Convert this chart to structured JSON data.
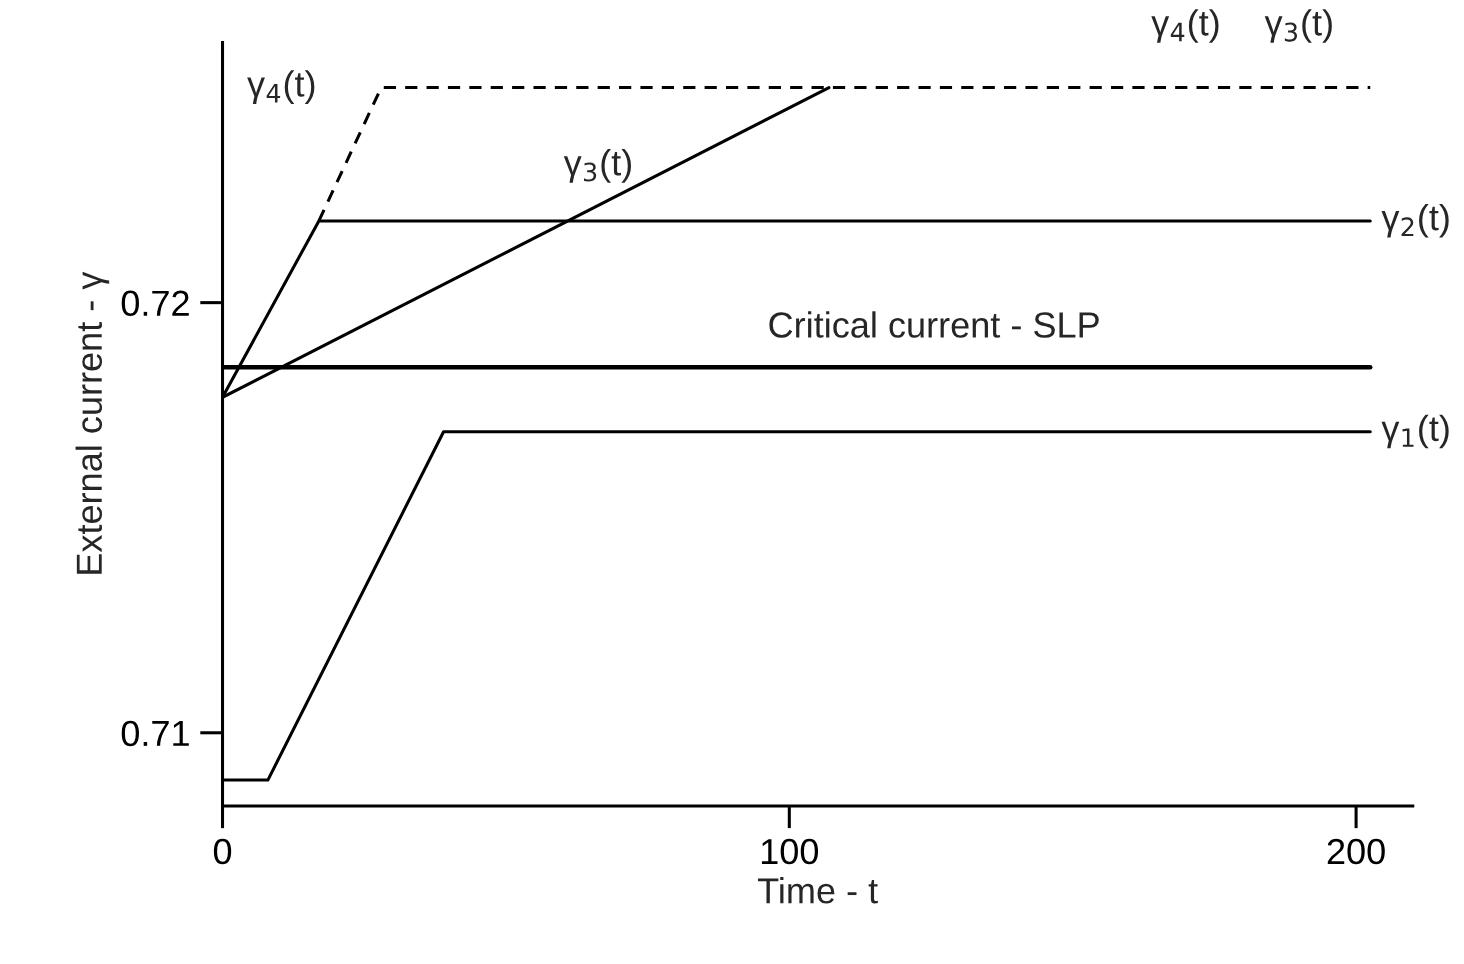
{
  "chart_data": {
    "type": "line",
    "xlabel": "Time - t",
    "ylabel": "External current - γ",
    "xlim": [
      0,
      210
    ],
    "ylim": [
      0.7083,
      0.72605
    ],
    "xticks": [
      0,
      100,
      200
    ],
    "yticks": [
      0.71,
      0.72
    ],
    "grid": false,
    "legend": false,
    "marker": "none",
    "series": [
      {
        "name": "γ$_{1}$(t)",
        "color": "#000000",
        "x": [
          0,
          8,
          39,
          202.5
        ],
        "values": [
          0.7089,
          0.7089,
          0.717,
          0.717
        ]
      },
      {
        "name": "Critical current - SLP",
        "color": "#000000",
        "x": [
          0,
          202.5
        ],
        "values": [
          0.7185,
          0.7185
        ]
      },
      {
        "name": "γ$_{2}$(t)",
        "color": "#000000",
        "x": [
          0,
          17,
          202.5
        ],
        "values": [
          0.7178,
          0.7219,
          0.7219
        ]
      },
      {
        "name": "γ$_{3}$(t)",
        "color": "#000000",
        "x": [
          0,
          107
        ],
        "values": [
          0.7178,
          0.725
        ]
      },
      {
        "name": "γ$_{4}$(t)",
        "color": "#000000",
        "line_style": "dashed",
        "x": [
          17,
          28,
          202.5
        ],
        "values": [
          0.7219,
          0.725,
          0.725
        ]
      }
    ],
    "annotations": [
      {
        "text": "γ$_{4}$(t)",
        "x": 170,
        "y": 0.725
      },
      {
        "text": "γ$_{3}$(t)",
        "x": 190,
        "y": 0.725
      }
    ]
  }
}
